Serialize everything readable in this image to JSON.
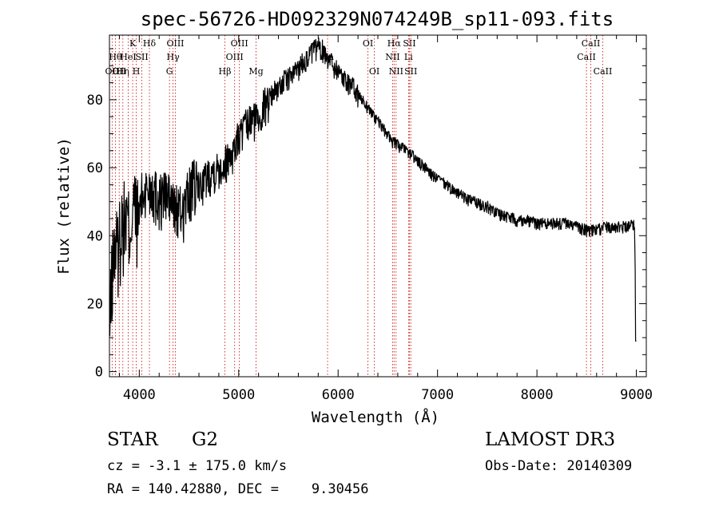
{
  "chart_data": {
    "type": "line",
    "title": "spec-56726-HD092329N074249B_sp11-093.fits",
    "xlabel": "Wavelength (Å)",
    "ylabel": "Flux (relative)",
    "xlim": [
      3700,
      9100
    ],
    "ylim": [
      -1.5,
      99
    ],
    "xticks": [
      4000,
      5000,
      6000,
      7000,
      8000,
      9000
    ],
    "yticks": [
      0,
      20,
      40,
      60,
      80
    ],
    "grid": false,
    "spectrum": {
      "x": [
        3700,
        3720,
        3740,
        3760,
        3780,
        3800,
        3830,
        3860,
        3900,
        3930,
        3960,
        3990,
        4020,
        4060,
        4100,
        4140,
        4180,
        4220,
        4260,
        4300,
        4340,
        4380,
        4420,
        4460,
        4500,
        4550,
        4600,
        4650,
        4700,
        4750,
        4800,
        4850,
        4900,
        4950,
        5000,
        5050,
        5100,
        5150,
        5200,
        5250,
        5300,
        5350,
        5400,
        5450,
        5500,
        5550,
        5600,
        5650,
        5700,
        5750,
        5800,
        5850,
        5900,
        5950,
        6000,
        6050,
        6100,
        6150,
        6200,
        6250,
        6300,
        6350,
        6400,
        6450,
        6500,
        6550,
        6600,
        6650,
        6700,
        6750,
        6800,
        6850,
        6900,
        6950,
        7000,
        7050,
        7100,
        7200,
        7300,
        7400,
        7500,
        7600,
        7700,
        7800,
        7900,
        8000,
        8100,
        8200,
        8300,
        8400,
        8500,
        8600,
        8700,
        8800,
        8900,
        8950,
        8980,
        9000
      ],
      "y": [
        10,
        28,
        35,
        40,
        37,
        42,
        45,
        47,
        44,
        48,
        50,
        46,
        52,
        54,
        55,
        55,
        53,
        52,
        54,
        52,
        50,
        49,
        48,
        50,
        54,
        56,
        55,
        57,
        59,
        60,
        61,
        62,
        64,
        66,
        70,
        72,
        74,
        75,
        76,
        79,
        81,
        83,
        84,
        86,
        87,
        88,
        90,
        92,
        93,
        95,
        96,
        95,
        93,
        91,
        89,
        87,
        86,
        84,
        82,
        80,
        78,
        76,
        74,
        72,
        70,
        68,
        67,
        66,
        65,
        64,
        62,
        61,
        60,
        58,
        57,
        56,
        55,
        53,
        51,
        50,
        49,
        47,
        46,
        45,
        45,
        44,
        44,
        44,
        44,
        43,
        42,
        42,
        43,
        43,
        43,
        44,
        44,
        9
      ]
    },
    "lines": [
      {
        "w": 3727,
        "label": "OII",
        "row": 2
      },
      {
        "w": 3760,
        "label": "Hθ",
        "row": 1
      },
      {
        "w": 3798,
        "label": "OII",
        "row": 2
      },
      {
        "w": 3835,
        "label": "Hη",
        "row": 2
      },
      {
        "w": 3889,
        "label": "HeI",
        "row": 1
      },
      {
        "w": 3934,
        "label": "K",
        "row": 0
      },
      {
        "w": 3970,
        "label": "H",
        "row": 2
      },
      {
        "w": 4026,
        "label": "SII",
        "row": 1
      },
      {
        "w": 4102,
        "label": "Hδ",
        "row": 0
      },
      {
        "w": 4304,
        "label": "G",
        "row": 2
      },
      {
        "w": 4340,
        "label": "Hγ",
        "row": 1
      },
      {
        "w": 4363,
        "label": "OIII",
        "row": 0
      },
      {
        "w": 4861,
        "label": "Hβ",
        "row": 2
      },
      {
        "w": 4959,
        "label": "OIII",
        "row": 1
      },
      {
        "w": 5007,
        "label": "OIII",
        "row": 0
      },
      {
        "w": 5175,
        "label": "Mg",
        "row": 2
      },
      {
        "w": 5894,
        "label": "Na",
        "row": 1
      },
      {
        "w": 6300,
        "label": "OI",
        "row": 0
      },
      {
        "w": 6364,
        "label": "OI",
        "row": 2
      },
      {
        "w": 6548,
        "label": "NII",
        "row": 1
      },
      {
        "w": 6563,
        "label": "Hα",
        "row": 0
      },
      {
        "w": 6583,
        "label": "NII",
        "row": 2
      },
      {
        "w": 6708,
        "label": "Li",
        "row": 1
      },
      {
        "w": 6717,
        "label": "SII",
        "row": 0
      },
      {
        "w": 6731,
        "label": "SII",
        "row": 2
      },
      {
        "w": 8498,
        "label": "CaII",
        "row": 1
      },
      {
        "w": 8542,
        "label": "CaII",
        "row": 0
      },
      {
        "w": 8662,
        "label": "CaII",
        "row": 2
      }
    ]
  },
  "info": {
    "class": "STAR",
    "subclass": "G2",
    "survey": "LAMOST DR3",
    "cz": "cz = -3.1 ± 175.0 km/s",
    "obs_date": "Obs-Date: 20140309",
    "radec": "RA = 140.42880, DEC =    9.30456"
  }
}
